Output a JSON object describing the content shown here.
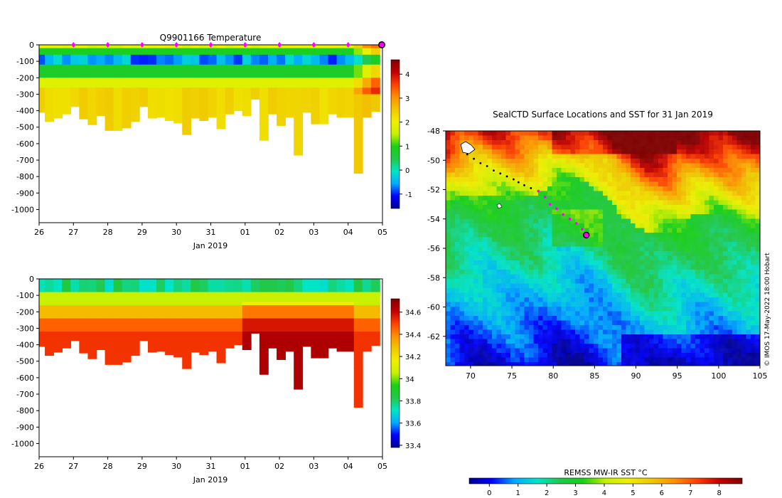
{
  "chart_data": [
    {
      "type": "heatmap",
      "panel": "temperature-section",
      "title": "Q9901166  Temperature",
      "xlabel": "Jan 2019",
      "x_ticks": [
        "26",
        "27",
        "28",
        "29",
        "30",
        "31",
        "01",
        "02",
        "03",
        "04",
        "05"
      ],
      "x_range_days": [
        26,
        36
      ],
      "y_ticks": [
        "0",
        "-100",
        "-200",
        "-300",
        "-400",
        "-500",
        "-600",
        "-700",
        "-800",
        "-900",
        "-1000"
      ],
      "y_range_m": [
        -1080,
        0
      ],
      "colorbar_ticks": [
        "-1",
        "0",
        "1",
        "2",
        "3",
        "4"
      ],
      "colorbar_range": [
        -1.6,
        4.6
      ],
      "colormap": [
        "#00008f",
        "#0000ff",
        "#00aaff",
        "#00e5c8",
        "#22c84a",
        "#18d018",
        "#c8f000",
        "#f0f000",
        "#f0c800",
        "#ff9000",
        "#ff4000",
        "#c00000",
        "#800000"
      ],
      "surface_marker_days": [
        27,
        28,
        29,
        30,
        31,
        32,
        33,
        34,
        35
      ],
      "last_profile_day": 36,
      "profiles": [
        {
          "x": 26.05,
          "depth": 410
        },
        {
          "x": 26.3,
          "depth": 465
        },
        {
          "x": 26.55,
          "depth": 445
        },
        {
          "x": 26.8,
          "depth": 420
        },
        {
          "x": 27.05,
          "depth": 375
        },
        {
          "x": 27.3,
          "depth": 450
        },
        {
          "x": 27.55,
          "depth": 485
        },
        {
          "x": 27.8,
          "depth": 430
        },
        {
          "x": 28.05,
          "depth": 520
        },
        {
          "x": 28.3,
          "depth": 520
        },
        {
          "x": 28.55,
          "depth": 505
        },
        {
          "x": 28.8,
          "depth": 465
        },
        {
          "x": 29.05,
          "depth": 375
        },
        {
          "x": 29.3,
          "depth": 445
        },
        {
          "x": 29.55,
          "depth": 440
        },
        {
          "x": 29.8,
          "depth": 460
        },
        {
          "x": 30.05,
          "depth": 475
        },
        {
          "x": 30.3,
          "depth": 545
        },
        {
          "x": 30.55,
          "depth": 445
        },
        {
          "x": 30.8,
          "depth": 460
        },
        {
          "x": 31.05,
          "depth": 440
        },
        {
          "x": 31.3,
          "depth": 510
        },
        {
          "x": 31.55,
          "depth": 420
        },
        {
          "x": 31.8,
          "depth": 400
        },
        {
          "x": 32.05,
          "depth": 430
        },
        {
          "x": 32.3,
          "depth": 330
        },
        {
          "x": 32.55,
          "depth": 580
        },
        {
          "x": 32.8,
          "depth": 420
        },
        {
          "x": 33.05,
          "depth": 490
        },
        {
          "x": 33.3,
          "depth": 440
        },
        {
          "x": 33.55,
          "depth": 670
        },
        {
          "x": 33.8,
          "depth": 410
        },
        {
          "x": 34.05,
          "depth": 480
        },
        {
          "x": 34.3,
          "depth": 480
        },
        {
          "x": 34.55,
          "depth": 420
        },
        {
          "x": 34.8,
          "depth": 440
        },
        {
          "x": 35.05,
          "depth": 440
        },
        {
          "x": 35.3,
          "depth": 780
        },
        {
          "x": 35.55,
          "depth": 440
        },
        {
          "x": 35.8,
          "depth": 405
        }
      ]
    },
    {
      "type": "heatmap",
      "panel": "salinity-section",
      "title": "",
      "xlabel": "Jan 2019",
      "x_ticks": [
        "26",
        "27",
        "28",
        "29",
        "30",
        "31",
        "01",
        "02",
        "03",
        "04",
        "05"
      ],
      "x_range_days": [
        26,
        36
      ],
      "y_ticks": [
        "0",
        "-100",
        "-200",
        "-300",
        "-400",
        "-500",
        "-600",
        "-700",
        "-800",
        "-900",
        "-1000"
      ],
      "y_range_m": [
        -1080,
        0
      ],
      "colorbar_ticks": [
        "33.4",
        "33.6",
        "33.8",
        "34",
        "34.2",
        "34.4",
        "34.6"
      ],
      "colorbar_range": [
        33.38,
        34.72
      ],
      "colormap": [
        "#00008f",
        "#0000ff",
        "#00aaff",
        "#00e5c8",
        "#22c84a",
        "#18d018",
        "#c8f000",
        "#f0f000",
        "#f0c800",
        "#ff9000",
        "#ff4000",
        "#c00000",
        "#800000"
      ]
    },
    {
      "type": "heatmap",
      "panel": "sst-map",
      "title": "SealCTD Surface Locations and SST for 31 Jan 2019",
      "x_ticks": [
        "70",
        "75",
        "80",
        "85",
        "90",
        "95",
        "100",
        "105"
      ],
      "x_range_lon": [
        67,
        105
      ],
      "y_ticks": [
        "-48",
        "-50",
        "-52",
        "-54",
        "-56",
        "-58",
        "-60",
        "-62"
      ],
      "y_range_lat": [
        -64,
        -48
      ],
      "colorbar_label": "REMSS MW-IR SST °C",
      "colorbar_ticks": [
        "0",
        "1",
        "2",
        "3",
        "4",
        "5",
        "6",
        "7",
        "8"
      ],
      "colorbar_range": [
        -0.7,
        8.8
      ],
      "colormap": [
        "#00008f",
        "#0000ff",
        "#00aaff",
        "#00e5c8",
        "#22c84a",
        "#18d018",
        "#c8f000",
        "#f0f000",
        "#f0c800",
        "#ff9000",
        "#ff4000",
        "#c00000",
        "#800000"
      ],
      "track_black": [
        {
          "lon": 69.6,
          "lat": -49.6
        },
        {
          "lon": 70.4,
          "lat": -49.9
        },
        {
          "lon": 71.2,
          "lat": -50.2
        },
        {
          "lon": 72.0,
          "lat": -50.4
        },
        {
          "lon": 72.8,
          "lat": -50.7
        },
        {
          "lon": 73.6,
          "lat": -50.9
        },
        {
          "lon": 74.4,
          "lat": -51.1
        },
        {
          "lon": 75.2,
          "lat": -51.3
        },
        {
          "lon": 75.8,
          "lat": -51.5
        },
        {
          "lon": 76.5,
          "lat": -51.7
        },
        {
          "lon": 77.3,
          "lat": -51.9
        }
      ],
      "track_magenta": [
        {
          "lon": 78.2,
          "lat": -52.1
        },
        {
          "lon": 79.0,
          "lat": -52.5
        },
        {
          "lon": 79.6,
          "lat": -53.0
        },
        {
          "lon": 80.4,
          "lat": -53.3
        },
        {
          "lon": 81.2,
          "lat": -53.7
        },
        {
          "lon": 82.0,
          "lat": -54.0
        },
        {
          "lon": 82.8,
          "lat": -54.3
        },
        {
          "lon": 83.5,
          "lat": -54.7
        },
        {
          "lon": 84.0,
          "lat": -55.1
        }
      ],
      "last_position": {
        "lon": 84.0,
        "lat": -55.1
      },
      "stamp": "© IMOS 17-May-2022 18:00 Hobart"
    }
  ]
}
